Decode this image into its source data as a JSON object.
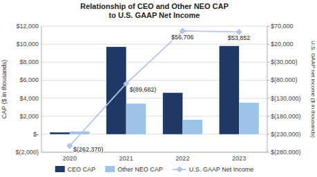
{
  "chart_data": {
    "type": "bar",
    "title": "Relationship of CEO and Other NEO CAP\nto U.S. GAAP Net Income",
    "categories": [
      "2020",
      "2021",
      "2022",
      "2023"
    ],
    "series": [
      {
        "name": "CEO CAP",
        "color": "#1F3864",
        "values": [
          200,
          9700,
          4600,
          9800
        ]
      },
      {
        "name": "Other NEO CAP",
        "color": "#9DC3E6",
        "values": [
          300,
          3400,
          1600,
          3500
        ]
      },
      {
        "name": "U.S. GAAP Net Income",
        "type": "line",
        "marker": "diamond",
        "axis": "y2",
        "color": "#B4C7E7",
        "values": [
          -262370,
          -89682,
          56706,
          53852
        ],
        "value_labels": [
          "$(262,370)",
          "$(89,682)",
          "$56,706",
          "$53,852"
        ],
        "data_labels": true
      }
    ],
    "ylabel": "CAP ($ in thousands)",
    "y2label": "U.S. GAAP net income ($ in thousands)",
    "ylim": [
      -2000,
      12000
    ],
    "yticks": [
      {
        "value": -2000,
        "label": "$(2,000)"
      },
      {
        "value": 0,
        "label": "$-"
      },
      {
        "value": 2000,
        "label": "$2,000"
      },
      {
        "value": 4000,
        "label": "$4,000"
      },
      {
        "value": 6000,
        "label": "$6,000"
      },
      {
        "value": 8000,
        "label": "$8,000"
      },
      {
        "value": 10000,
        "label": "$10,000"
      },
      {
        "value": 12000,
        "label": "$12,000"
      }
    ],
    "y2lim": [
      -280000,
      70000
    ],
    "y2ticks": [
      {
        "value": -280000,
        "label": "$(280,000)"
      },
      {
        "value": -230000,
        "label": "$(230,000)"
      },
      {
        "value": -180000,
        "label": "$(180,000)"
      },
      {
        "value": -130000,
        "label": "$(130,000)"
      },
      {
        "value": -80000,
        "label": "$(80,000)"
      },
      {
        "value": -30000,
        "label": "$(30,000)"
      },
      {
        "value": 20000,
        "label": "$20,000"
      },
      {
        "value": 70000,
        "label": "$70,000"
      }
    ],
    "grid": true,
    "legend": "bottom"
  }
}
